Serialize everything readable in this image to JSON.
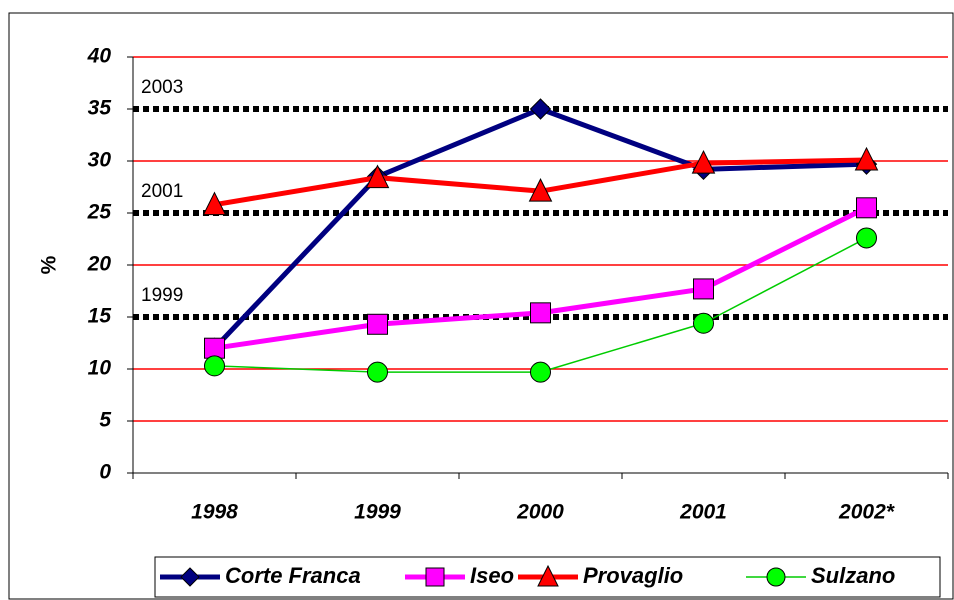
{
  "chart_data": {
    "type": "line",
    "y_label": "%",
    "categories": [
      "1998",
      "1999",
      "2000",
      "2001",
      "2002*"
    ],
    "ylim": [
      0,
      40
    ],
    "yticks": [
      0,
      5,
      10,
      15,
      20,
      25,
      30,
      35,
      40
    ],
    "grid": true,
    "grid_color": "#ff0000",
    "reference_lines": [
      {
        "value": 35,
        "label": "2003"
      },
      {
        "value": 25,
        "label": "2001"
      },
      {
        "value": 15,
        "label": "1999"
      }
    ],
    "legend": "bottom",
    "series": [
      {
        "name": "Corte Franca",
        "color": "#000080",
        "marker": "diamond",
        "marker_color": "#000080",
        "line_width": 5,
        "values": [
          12,
          28.5,
          35,
          29.2,
          29.7
        ]
      },
      {
        "name": "Iseo",
        "color": "#ff00ff",
        "marker": "square",
        "marker_color": "#ff00ff",
        "line_width": 5,
        "values": [
          12,
          14.3,
          15.4,
          17.7,
          25.5
        ]
      },
      {
        "name": "Provaglio",
        "color": "#ff0000",
        "marker": "triangle",
        "marker_color": "#ff0000",
        "line_width": 5,
        "values": [
          25.8,
          28.4,
          27.1,
          29.8,
          30.1
        ]
      },
      {
        "name": "Sulzano",
        "color": "#00cc00",
        "marker": "circle",
        "marker_color": "#00ff00",
        "line_width": 1.5,
        "values": [
          10.3,
          9.7,
          9.7,
          14.4,
          22.6
        ]
      }
    ]
  }
}
